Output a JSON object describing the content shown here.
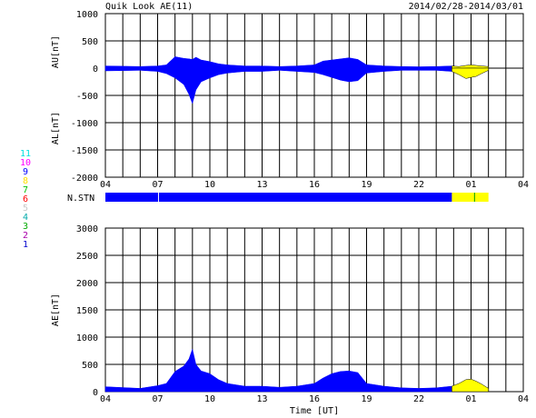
{
  "header": {
    "title": "Quik Look AE(11)",
    "date_range": "2014/02/28-2014/03/01"
  },
  "stn_label": "N.STN",
  "station_legend": [
    {
      "label": "11",
      "color": "#00e0e0"
    },
    {
      "label": "10",
      "color": "#ff00ff"
    },
    {
      "label": "9",
      "color": "#0000ff"
    },
    {
      "label": "8",
      "color": "#ffe000"
    },
    {
      "label": "7",
      "color": "#00c000"
    },
    {
      "label": "6",
      "color": "#ff0000"
    },
    {
      "label": "5",
      "color": "#c8c8c8"
    },
    {
      "label": "4",
      "color": "#00aaaa"
    },
    {
      "label": "3",
      "color": "#00aa00"
    },
    {
      "label": "2",
      "color": "#aa00aa"
    },
    {
      "label": "1",
      "color": "#0000cc"
    }
  ],
  "colors": {
    "blue": "#0000ff",
    "yellow": "#ffff00"
  },
  "chart_data": [
    {
      "type": "area",
      "name": "AU/AL",
      "ylabel_upper": "AU[nT]",
      "ylabel_lower": "AL[nT]",
      "ylim": [
        -2000,
        1000
      ],
      "yticks": [
        -2000,
        -1500,
        -1000,
        -500,
        0,
        500,
        1000
      ],
      "xlim": [
        4,
        28
      ],
      "xticks": [
        "04",
        "07",
        "10",
        "13",
        "16",
        "19",
        "22",
        "01",
        "04"
      ],
      "x_unit": "hours UT",
      "x": [
        4,
        6,
        7,
        7.5,
        8,
        8.5,
        8.8,
        9,
        9.2,
        9.5,
        10,
        10.5,
        11,
        12,
        13,
        14,
        15,
        16,
        16.5,
        17,
        17.5,
        18,
        18.5,
        19,
        20,
        21,
        22,
        23,
        23.9,
        24.3,
        24.7,
        25,
        25.3,
        25.6,
        26
      ],
      "au": [
        40,
        30,
        40,
        60,
        210,
        180,
        170,
        160,
        200,
        150,
        120,
        80,
        60,
        40,
        40,
        30,
        40,
        60,
        130,
        150,
        170,
        190,
        160,
        60,
        40,
        30,
        25,
        30,
        40,
        30,
        50,
        60,
        50,
        40,
        30
      ],
      "al": [
        -50,
        -40,
        -60,
        -100,
        -180,
        -300,
        -480,
        -650,
        -400,
        -250,
        -180,
        -120,
        -90,
        -60,
        -60,
        -40,
        -60,
        -80,
        -120,
        -170,
        -220,
        -250,
        -230,
        -90,
        -60,
        -40,
        -40,
        -40,
        -60,
        -120,
        -190,
        -170,
        -150,
        -100,
        -40
      ],
      "blue_until": 23.9
    },
    {
      "type": "area",
      "name": "AE",
      "ylabel": "AE[nT]",
      "xlabel": "Time [UT]",
      "ylim": [
        0,
        3000
      ],
      "yticks": [
        0,
        500,
        1000,
        1500,
        2000,
        2500,
        3000
      ],
      "xlim": [
        4,
        28
      ],
      "xticks": [
        "04",
        "07",
        "10",
        "13",
        "16",
        "19",
        "22",
        "01",
        "04"
      ],
      "x": [
        4,
        6,
        7,
        7.5,
        8,
        8.5,
        8.8,
        9,
        9.2,
        9.5,
        10,
        10.5,
        11,
        12,
        13,
        14,
        15,
        16,
        16.5,
        17,
        17.5,
        18,
        18.5,
        19,
        20,
        21,
        22,
        23,
        23.9,
        24.3,
        24.7,
        25,
        25.3,
        25.6,
        26
      ],
      "ae": [
        90,
        60,
        110,
        150,
        370,
        470,
        600,
        780,
        500,
        380,
        330,
        220,
        150,
        100,
        100,
        80,
        100,
        150,
        250,
        330,
        370,
        380,
        350,
        150,
        100,
        70,
        60,
        70,
        100,
        150,
        220,
        230,
        190,
        140,
        60
      ],
      "blue_until": 23.9
    }
  ],
  "stn_bar": {
    "xlim": [
      4,
      28
    ],
    "segments": [
      {
        "x0": 4,
        "x1": 23.9,
        "color": "#0000ff"
      },
      {
        "x0": 23.9,
        "x1": 26,
        "color": "#ffff00"
      }
    ]
  }
}
